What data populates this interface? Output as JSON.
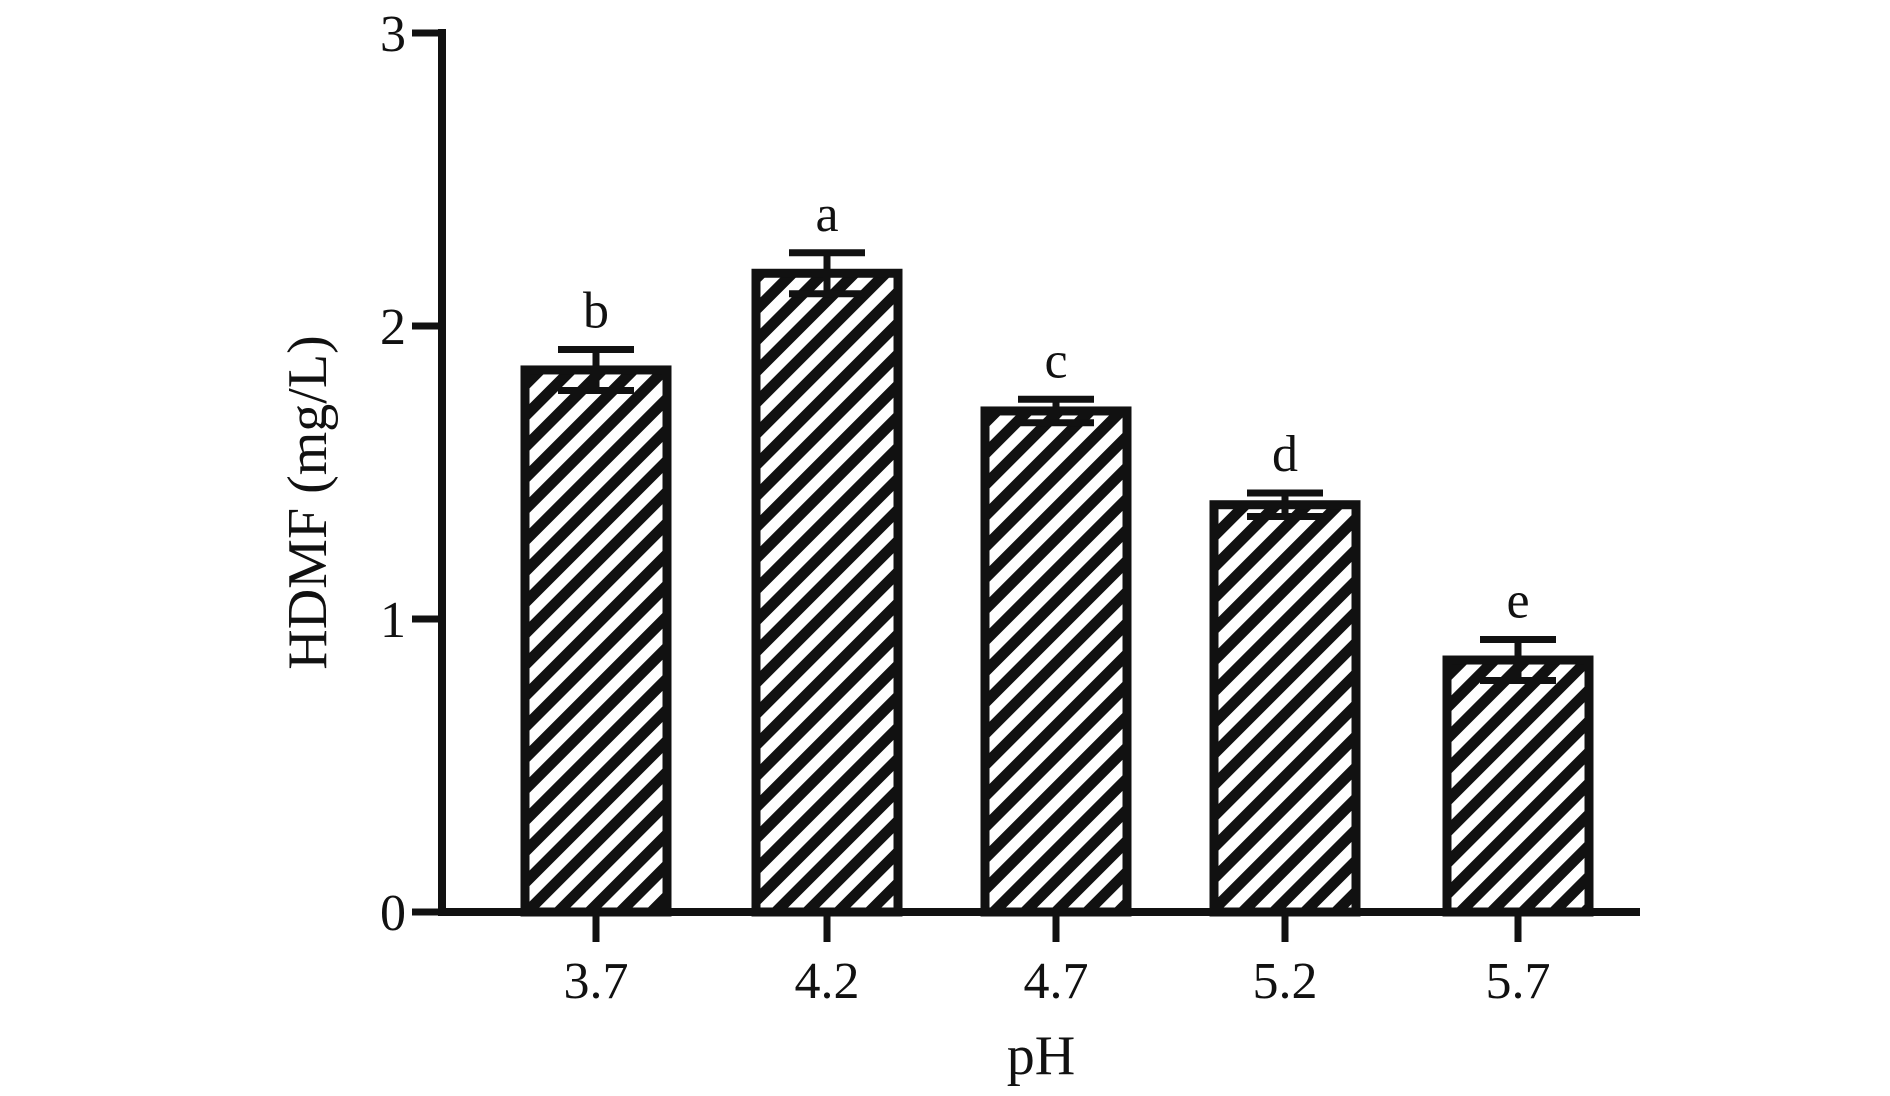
{
  "chart_data": {
    "type": "bar",
    "categories": [
      "3.7",
      "4.2",
      "4.7",
      "5.2",
      "5.7"
    ],
    "values": [
      1.85,
      2.18,
      1.71,
      1.39,
      0.86
    ],
    "errors": [
      0.07,
      0.07,
      0.04,
      0.04,
      0.07
    ],
    "significance_labels": [
      "b",
      "a",
      "c",
      "d",
      "e"
    ],
    "title": "",
    "xlabel": "pH",
    "ylabel": "HDMF (mg/L)",
    "ylim": [
      0,
      3
    ],
    "yticks": [
      "0",
      "1",
      "2",
      "3"
    ],
    "grid": false,
    "bar_fill": "diagonal-hatch",
    "colors": {
      "axis": "#111111",
      "bar_edge": "#111111",
      "hatch": "#111111",
      "background": "#ffffff"
    }
  }
}
